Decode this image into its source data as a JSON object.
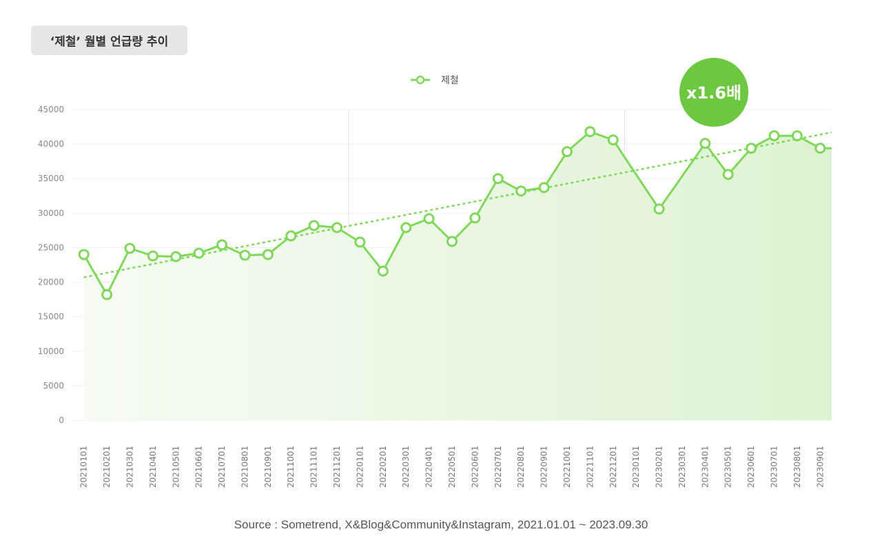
{
  "title": "‘제철’ 월별 언급량 추이",
  "badge": "x1.6배",
  "source": "Source : Sometrend, X&Blog&Community&Instagram, 2021.01.01 ~ 2023.09.30",
  "colors": {
    "line": "#7ed957",
    "badge": "#6cc93f",
    "grid": "#eeeeee",
    "axisText": "#888888"
  },
  "chart_data": {
    "type": "line",
    "title": "‘제철’ 월별 언급량 추이",
    "ylim": [
      0,
      45000
    ],
    "yticks": [
      0,
      5000,
      10000,
      15000,
      20000,
      25000,
      30000,
      35000,
      40000,
      45000
    ],
    "legend": "top-center",
    "categories": [
      "20210101",
      "20210201",
      "20210301",
      "20210401",
      "20210501",
      "20210601",
      "20210701",
      "20210801",
      "20210901",
      "20211001",
      "20211101",
      "20211201",
      "20220101",
      "20220201",
      "20220301",
      "20220401",
      "20220501",
      "20220601",
      "20220701",
      "20220801",
      "20220901",
      "20221001",
      "20221101",
      "20221201",
      "20230101",
      "20230201",
      "20230301",
      "20230401",
      "20230501",
      "20230601",
      "20230701",
      "20230801",
      "20230901"
    ],
    "series": [
      {
        "name": "제철",
        "values": [
          24000,
          18200,
          24900,
          23800,
          23700,
          24200,
          25400,
          23900,
          24000,
          26700,
          28200,
          27900,
          25800,
          21600,
          27900,
          29200,
          25900,
          29300,
          35000,
          33200,
          33700,
          38900,
          41800,
          40600,
          null,
          30600,
          null,
          40100,
          35600,
          39400,
          41200,
          41200,
          39400
        ]
      }
    ],
    "trendline": {
      "start": 20700,
      "end": 41700,
      "style": "dotted"
    }
  }
}
